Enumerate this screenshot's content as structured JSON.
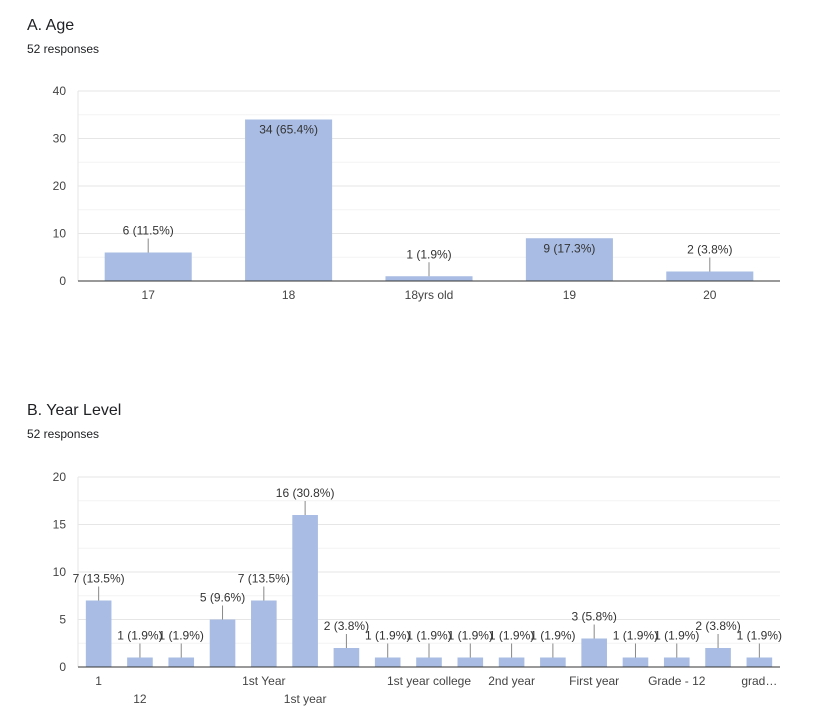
{
  "chart_data": [
    {
      "type": "bar",
      "title": "A. Age",
      "subtitle": "52 responses",
      "categories": [
        "17",
        "18",
        "18yrs old",
        "19",
        "20"
      ],
      "values": [
        6,
        34,
        1,
        9,
        2
      ],
      "data_labels": [
        "6 (11.5%)",
        "34 (65.4%)",
        "1 (1.9%)",
        "9 (17.3%)",
        "2 (3.8%)"
      ],
      "yticks": [
        "0",
        "10",
        "20",
        "30",
        "40"
      ],
      "ylim": [
        0,
        40
      ],
      "bar_color": "#a9bce3",
      "grid": true,
      "legend": "none"
    },
    {
      "type": "bar",
      "title": "B. Year Level",
      "subtitle": "52 responses",
      "categories": [
        "1",
        "12",
        "",
        "",
        "1st Year",
        "1st year",
        "",
        "",
        "1st year college",
        "",
        "2nd year",
        "",
        "First year",
        "",
        "Grade - 12",
        "",
        "grad…"
      ],
      "values": [
        7,
        1,
        1,
        5,
        7,
        16,
        2,
        1,
        1,
        1,
        1,
        1,
        3,
        1,
        1,
        2,
        1
      ],
      "data_labels": [
        "7 (13.5%)",
        "1 (1.9%)",
        "1 (1.9%)",
        "5 (9.6%)",
        "7 (13.5%)",
        "16 (30.8%)",
        "2 (3.8%)",
        "1 (1.9%)",
        "1 (1.9%)",
        "1 (1.9%)",
        "1 (1.9%)",
        "1 (1.9%)",
        "3 (5.8%)",
        "1 (1.9%)",
        "1 (1.9%)",
        "2 (3.8%)",
        "1 (1.9%)"
      ],
      "yticks": [
        "0",
        "5",
        "10",
        "15",
        "20"
      ],
      "ylim": [
        0,
        20
      ],
      "bar_color": "#a9bce3",
      "grid": true,
      "legend": "none"
    }
  ]
}
